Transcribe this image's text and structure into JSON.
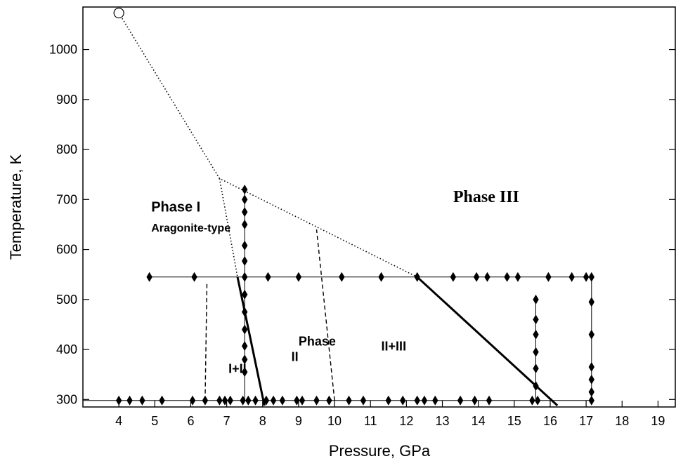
{
  "chart_data": {
    "type": "scatter",
    "xlabel": "Pressure, GPa",
    "ylabel": "Temperature, K",
    "xlim": [
      3,
      19.5
    ],
    "ylim": [
      285,
      1085
    ],
    "x_ticks": [
      4,
      5,
      6,
      7,
      8,
      9,
      10,
      11,
      12,
      13,
      14,
      15,
      16,
      17,
      18,
      19
    ],
    "y_ticks": [
      300,
      400,
      500,
      600,
      700,
      800,
      900,
      1000
    ],
    "grid": false,
    "marker_color": "#000000",
    "triple_point": {
      "x": 4.0,
      "y": 1073
    },
    "data_points": [
      {
        "x": 4.0,
        "y": 298
      },
      {
        "x": 4.3,
        "y": 298
      },
      {
        "x": 4.65,
        "y": 298
      },
      {
        "x": 5.2,
        "y": 298
      },
      {
        "x": 6.05,
        "y": 298
      },
      {
        "x": 6.4,
        "y": 298
      },
      {
        "x": 6.8,
        "y": 298
      },
      {
        "x": 6.95,
        "y": 298
      },
      {
        "x": 7.1,
        "y": 298
      },
      {
        "x": 7.45,
        "y": 298
      },
      {
        "x": 7.6,
        "y": 298
      },
      {
        "x": 7.8,
        "y": 298
      },
      {
        "x": 8.1,
        "y": 298
      },
      {
        "x": 8.3,
        "y": 298
      },
      {
        "x": 8.55,
        "y": 298
      },
      {
        "x": 8.95,
        "y": 298
      },
      {
        "x": 9.1,
        "y": 298
      },
      {
        "x": 9.5,
        "y": 298
      },
      {
        "x": 9.85,
        "y": 298
      },
      {
        "x": 10.4,
        "y": 298
      },
      {
        "x": 10.8,
        "y": 298
      },
      {
        "x": 11.5,
        "y": 298
      },
      {
        "x": 11.9,
        "y": 298
      },
      {
        "x": 12.3,
        "y": 298
      },
      {
        "x": 12.5,
        "y": 298
      },
      {
        "x": 12.8,
        "y": 298
      },
      {
        "x": 13.5,
        "y": 298
      },
      {
        "x": 13.9,
        "y": 298
      },
      {
        "x": 14.3,
        "y": 298
      },
      {
        "x": 15.5,
        "y": 298
      },
      {
        "x": 15.65,
        "y": 298
      },
      {
        "x": 17.15,
        "y": 298
      },
      {
        "x": 4.85,
        "y": 545
      },
      {
        "x": 6.1,
        "y": 545
      },
      {
        "x": 8.15,
        "y": 545
      },
      {
        "x": 9.0,
        "y": 545
      },
      {
        "x": 10.2,
        "y": 545
      },
      {
        "x": 11.3,
        "y": 545
      },
      {
        "x": 12.3,
        "y": 545
      },
      {
        "x": 13.3,
        "y": 545
      },
      {
        "x": 13.95,
        "y": 545
      },
      {
        "x": 14.25,
        "y": 545
      },
      {
        "x": 14.8,
        "y": 545
      },
      {
        "x": 15.1,
        "y": 545
      },
      {
        "x": 15.95,
        "y": 545
      },
      {
        "x": 16.6,
        "y": 545
      },
      {
        "x": 17.0,
        "y": 545
      },
      {
        "x": 17.15,
        "y": 545
      },
      {
        "x": 7.5,
        "y": 720
      },
      {
        "x": 7.5,
        "y": 700
      },
      {
        "x": 7.5,
        "y": 675
      },
      {
        "x": 7.5,
        "y": 650
      },
      {
        "x": 7.5,
        "y": 608
      },
      {
        "x": 7.5,
        "y": 577
      },
      {
        "x": 7.5,
        "y": 545
      },
      {
        "x": 7.5,
        "y": 510
      },
      {
        "x": 7.5,
        "y": 475
      },
      {
        "x": 7.5,
        "y": 440
      },
      {
        "x": 7.5,
        "y": 407
      },
      {
        "x": 7.5,
        "y": 380
      },
      {
        "x": 7.5,
        "y": 355
      },
      {
        "x": 15.6,
        "y": 500
      },
      {
        "x": 15.6,
        "y": 460
      },
      {
        "x": 15.6,
        "y": 430
      },
      {
        "x": 15.6,
        "y": 395
      },
      {
        "x": 15.6,
        "y": 362
      },
      {
        "x": 15.6,
        "y": 327
      },
      {
        "x": 17.15,
        "y": 495
      },
      {
        "x": 17.15,
        "y": 430
      },
      {
        "x": 17.15,
        "y": 365
      },
      {
        "x": 17.15,
        "y": 340
      },
      {
        "x": 17.15,
        "y": 315
      }
    ],
    "path_lines": [
      {
        "style": "thin",
        "points": [
          [
            3,
            298
          ],
          [
            17.15,
            298
          ]
        ]
      },
      {
        "style": "thin",
        "points": [
          [
            4.85,
            545
          ],
          [
            17.15,
            545
          ]
        ]
      },
      {
        "style": "thin",
        "points": [
          [
            7.5,
            720
          ],
          [
            7.5,
            298
          ]
        ]
      },
      {
        "style": "thin",
        "points": [
          [
            15.6,
            500
          ],
          [
            15.6,
            298
          ]
        ]
      },
      {
        "style": "thin",
        "points": [
          [
            17.15,
            545
          ],
          [
            17.15,
            298
          ]
        ]
      }
    ],
    "phase_boundaries": [
      {
        "style": "dotted",
        "points": [
          [
            4.0,
            1073
          ],
          [
            6.8,
            742
          ],
          [
            12.3,
            545
          ]
        ]
      },
      {
        "style": "dotted",
        "points": [
          [
            6.8,
            742
          ],
          [
            7.3,
            545
          ]
        ]
      },
      {
        "style": "dashed",
        "points": [
          [
            6.4,
            298
          ],
          [
            6.45,
            535
          ]
        ]
      },
      {
        "style": "dashed",
        "points": [
          [
            10.0,
            298
          ],
          [
            9.5,
            640
          ]
        ]
      },
      {
        "style": "solid",
        "points": [
          [
            7.3,
            545
          ],
          [
            8.05,
            288
          ]
        ]
      },
      {
        "style": "solid",
        "points": [
          [
            12.3,
            545
          ],
          [
            16.2,
            288
          ]
        ]
      }
    ],
    "annotations": [
      {
        "text": "Phase I",
        "x": 4.9,
        "y": 676,
        "size": 20,
        "family": "sans"
      },
      {
        "text": "Aragonite-type",
        "x": 4.9,
        "y": 636,
        "size": 16,
        "family": "sans"
      },
      {
        "text": "Phase III",
        "x": 13.3,
        "y": 695,
        "size": 24,
        "family": "serif"
      },
      {
        "text": "Phase",
        "x": 9.0,
        "y": 408,
        "size": 18,
        "family": "sans"
      },
      {
        "text": "II",
        "x": 8.8,
        "y": 377,
        "size": 18,
        "family": "sans"
      },
      {
        "text": "II+III",
        "x": 11.3,
        "y": 398,
        "size": 18,
        "family": "sans"
      },
      {
        "text": "I+II",
        "x": 7.05,
        "y": 353,
        "size": 18,
        "family": "sans"
      }
    ]
  }
}
